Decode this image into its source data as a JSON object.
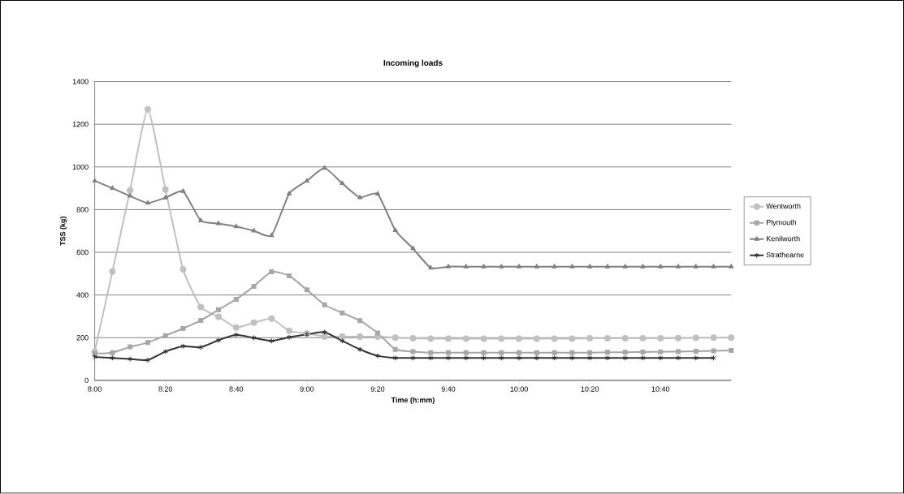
{
  "chart_data": {
    "type": "line",
    "title": "Incoming loads",
    "xlabel": "Time (h:mm)",
    "ylabel": "TSS (kg)",
    "categories": [
      "8:00",
      null,
      null,
      null,
      "8:20",
      null,
      null,
      null,
      "8:40",
      null,
      null,
      null,
      "9:00",
      null,
      null,
      null,
      "9:20",
      null,
      null,
      null,
      "9:40",
      null,
      null,
      null,
      "10:00",
      null,
      null,
      null,
      "10:20",
      null,
      null,
      null,
      "10:40",
      null,
      null,
      null,
      null
    ],
    "series": [
      {
        "name": "Wentworth",
        "color": "#c0c0c0",
        "marker": "circle",
        "values": [
          135,
          510,
          890,
          1270,
          895,
          520,
          344,
          298,
          248,
          270,
          289,
          232,
          220,
          205,
          205,
          205,
          205,
          200,
          197,
          195,
          195,
          195,
          195,
          195,
          195,
          195,
          195,
          195,
          197,
          197,
          197,
          197,
          197,
          198,
          199,
          200,
          200
        ]
      },
      {
        "name": "Plymouth",
        "color": "#a6a6a6",
        "marker": "square",
        "values": [
          125,
          130,
          157,
          177,
          210,
          243,
          281,
          331,
          380,
          441,
          509,
          490,
          424,
          354,
          316,
          280,
          222,
          145,
          135,
          130,
          130,
          130,
          130,
          130,
          130,
          130,
          130,
          130,
          130,
          132,
          132,
          133,
          134,
          135,
          136,
          138,
          140
        ]
      },
      {
        "name": "Kenilworth",
        "color": "#808080",
        "marker": "triangle",
        "values": [
          935,
          900,
          864,
          831,
          856,
          886,
          748,
          735,
          721,
          701,
          679,
          875,
          935,
          995,
          923,
          857,
          874,
          703,
          618,
          527,
          533,
          533,
          533,
          533,
          533,
          533,
          533,
          533,
          533,
          533,
          533,
          533,
          533,
          533,
          533,
          533,
          533
        ]
      },
      {
        "name": "Strathearne",
        "color": "#333333",
        "marker": "cross",
        "values": [
          110,
          105,
          100,
          95,
          135,
          160,
          155,
          188,
          213,
          199,
          185,
          202,
          215,
          226,
          185,
          145,
          115,
          105,
          105,
          105,
          105,
          105,
          105,
          105,
          105,
          105,
          105,
          105,
          105,
          105,
          105,
          105,
          105,
          105,
          105,
          105,
          null
        ]
      }
    ],
    "ylim": [
      0,
      1400
    ],
    "yticks": [
      0,
      200,
      400,
      600,
      800,
      1000,
      1200,
      1400
    ],
    "grid": "y",
    "legend": "right",
    "line_style": "solid"
  }
}
